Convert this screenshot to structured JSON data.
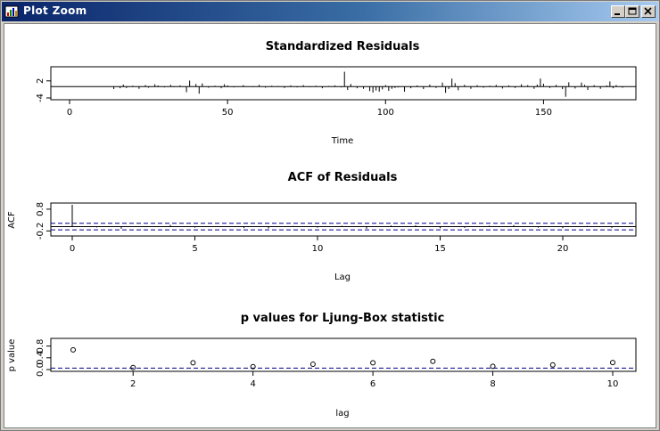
{
  "window": {
    "title": "Plot Zoom",
    "icon": "r-plot-icon"
  },
  "titlebar_buttons": [
    {
      "name": "minimize-button",
      "icon": "minimize-icon"
    },
    {
      "name": "maximize-button",
      "icon": "maximize-icon"
    },
    {
      "name": "close-button",
      "icon": "close-icon"
    }
  ],
  "colors": {
    "titlebar_start": "#0a246a",
    "titlebar_end": "#a6caf0",
    "plot_ink": "#000000",
    "ci_line": "#00008b"
  },
  "chart_data": [
    {
      "type": "bar",
      "title": "Standardized Residuals",
      "xlabel": "Time",
      "ylabel": "",
      "xlim": [
        0,
        175
      ],
      "ylim": [
        -4,
        6
      ],
      "xticks": [
        "0",
        "50",
        "100",
        "150"
      ],
      "xtick_values": [
        0,
        50,
        100,
        150
      ],
      "yticks": [
        "-4",
        "2"
      ],
      "ytick_values": [
        -4,
        2
      ],
      "x": [
        14,
        16,
        17,
        18,
        20,
        22,
        24,
        25,
        27,
        28,
        30,
        32,
        33,
        35,
        37,
        38,
        40,
        41,
        42,
        44,
        46,
        48,
        49,
        50,
        52,
        55,
        58,
        60,
        62,
        64,
        66,
        68,
        70,
        72,
        74,
        76,
        78,
        80,
        82,
        84,
        86,
        87,
        88,
        89,
        91,
        93,
        95,
        96,
        97,
        98,
        99,
        100,
        101,
        102,
        103,
        104,
        106,
        108,
        110,
        112,
        114,
        116,
        118,
        119,
        120,
        121,
        122,
        123,
        125,
        127,
        129,
        131,
        133,
        135,
        137,
        139,
        141,
        143,
        145,
        147,
        148,
        149,
        150,
        152,
        154,
        156,
        157,
        158,
        160,
        162,
        163,
        164,
        166,
        168,
        170,
        171,
        172,
        173,
        175
      ],
      "values": [
        -0.9,
        -0.6,
        0.7,
        -0.5,
        0.3,
        -0.8,
        0.5,
        -0.4,
        0.8,
        0.4,
        -0.3,
        0.6,
        -0.2,
        0.4,
        -2.0,
        2.1,
        0.9,
        -2.5,
        1.1,
        -0.4,
        0.3,
        -0.6,
        0.8,
        0.4,
        -0.3,
        0.5,
        -0.2,
        0.6,
        -0.4,
        0.3,
        0.2,
        -0.5,
        0.4,
        -0.3,
        0.5,
        -0.2,
        0.3,
        -0.6,
        0.2,
        0.4,
        -0.3,
        5.2,
        -1.2,
        0.9,
        -0.6,
        -0.8,
        -1.6,
        -2.1,
        -1.4,
        -1.8,
        -1.0,
        0.5,
        -1.5,
        -0.8,
        -0.5,
        -0.3,
        -1.8,
        -0.6,
        0.4,
        -0.9,
        0.7,
        -0.5,
        1.4,
        -2.2,
        -0.9,
        2.8,
        1.2,
        -1.3,
        0.6,
        -0.8,
        0.5,
        -0.4,
        0.3,
        0.6,
        -0.7,
        0.4,
        -0.5,
        0.8,
        0.5,
        -0.8,
        0.7,
        2.8,
        1.0,
        -0.5,
        0.6,
        -0.9,
        -3.6,
        1.5,
        -0.7,
        1.4,
        0.6,
        -1.2,
        0.5,
        -0.8,
        0.4,
        1.8,
        -0.6,
        0.5,
        -0.4
      ]
    },
    {
      "type": "bar",
      "title": "ACF of Residuals",
      "xlabel": "Lag",
      "ylabel": "ACF",
      "xlim": [
        0,
        22
      ],
      "ylim": [
        -0.35,
        1.0
      ],
      "xticks": [
        "0",
        "5",
        "10",
        "15",
        "20"
      ],
      "xtick_values": [
        0,
        5,
        10,
        15,
        20
      ],
      "yticks": [
        "-0.2",
        "0.8"
      ],
      "ytick_values": [
        -0.2,
        0.8
      ],
      "x": [
        0,
        1,
        2,
        3,
        4,
        5,
        6,
        7,
        8,
        9,
        10,
        11,
        12,
        13,
        14,
        15,
        16,
        17,
        18,
        19,
        20,
        21,
        22
      ],
      "values": [
        1.0,
        -0.04,
        -0.1,
        -0.03,
        0.08,
        -0.05,
        0.02,
        -0.07,
        -0.09,
        0.03,
        -0.05,
        0.04,
        -0.1,
        0.05,
        0.06,
        -0.08,
        -0.06,
        0.04,
        0.07,
        -0.05,
        -0.07,
        0.03,
        -0.06
      ],
      "ci": 0.15
    },
    {
      "type": "scatter",
      "title": "p values for Ljung-Box statistic",
      "xlabel": "lag",
      "ylabel": "p value",
      "xlim": [
        1,
        10
      ],
      "ylim": [
        0,
        1
      ],
      "xticks": [
        "2",
        "4",
        "6",
        "8",
        "10"
      ],
      "xtick_values": [
        2,
        4,
        6,
        8,
        10
      ],
      "yticks": [
        "0.0",
        "0.4",
        "0.8"
      ],
      "ytick_values": [
        0,
        0.4,
        0.8
      ],
      "x": [
        1,
        2,
        3,
        4,
        5,
        6,
        7,
        8,
        9,
        10
      ],
      "values": [
        0.67,
        0.07,
        0.23,
        0.1,
        0.18,
        0.23,
        0.28,
        0.11,
        0.16,
        0.24
      ],
      "ref_line": 0.05
    }
  ]
}
